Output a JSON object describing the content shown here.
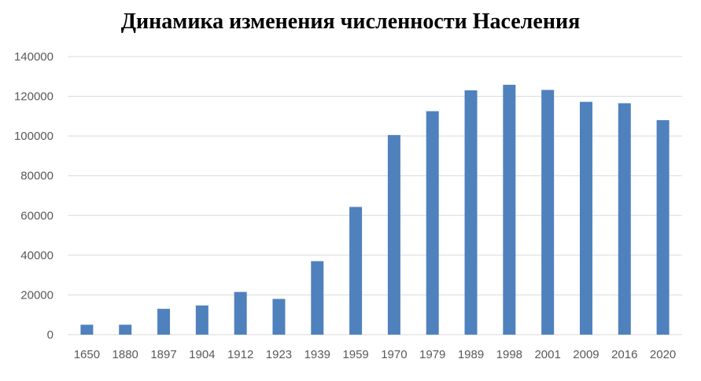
{
  "chart_data": {
    "type": "bar",
    "title": "Динамика изменения численности Населения",
    "categories": [
      "1650",
      "1880",
      "1897",
      "1904",
      "1912",
      "1923",
      "1939",
      "1959",
      "1970",
      "1979",
      "1989",
      "1998",
      "2001",
      "2009",
      "2016",
      "2020"
    ],
    "values": [
      5000,
      5000,
      13000,
      14700,
      21500,
      18000,
      37000,
      64300,
      100500,
      112500,
      123000,
      125800,
      123200,
      117200,
      116500,
      108000
    ],
    "ylim": [
      0,
      140000
    ],
    "yticks": [
      0,
      20000,
      40000,
      60000,
      80000,
      100000,
      120000,
      140000
    ],
    "grid": true,
    "bar_color": "#4f81bd"
  }
}
